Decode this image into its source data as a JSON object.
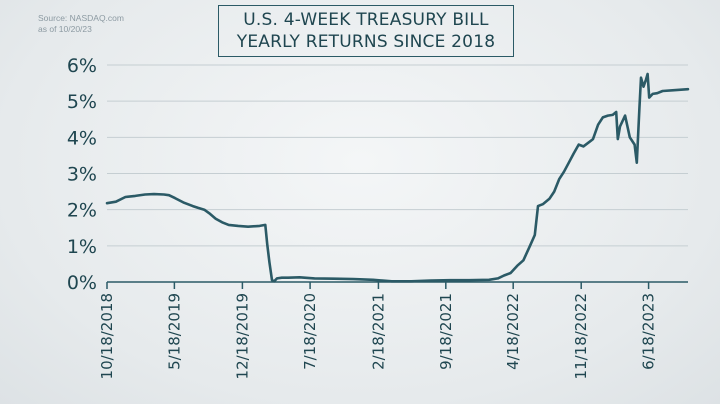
{
  "source": {
    "line1": "Source: NASDAQ.com",
    "line2": "as of 10/20/23"
  },
  "chart_data": {
    "type": "line",
    "title_line1": "U.S. 4-WEEK TREASURY BILL",
    "title_line2": "YEARLY RETURNS SINCE 2018",
    "xlabel": "",
    "ylabel": "",
    "ylim": [
      0,
      6
    ],
    "yticks": [
      "0%",
      "1%",
      "2%",
      "3%",
      "4%",
      "5%",
      "6%"
    ],
    "xlim": [
      "2018-10-18",
      "2023-10-20"
    ],
    "xticks": [
      {
        "date": "2018-10-18",
        "label": "10/18/2018"
      },
      {
        "date": "2019-05-18",
        "label": "5/18/2019"
      },
      {
        "date": "2019-12-18",
        "label": "12/18/2019"
      },
      {
        "date": "2020-07-18",
        "label": "7/18/2020"
      },
      {
        "date": "2021-02-18",
        "label": "2/18/2021"
      },
      {
        "date": "2021-09-18",
        "label": "9/18/2021"
      },
      {
        "date": "2022-04-18",
        "label": "4/18/2022"
      },
      {
        "date": "2022-11-18",
        "label": "11/18/2022"
      },
      {
        "date": "2023-06-18",
        "label": "6/18/2023"
      }
    ],
    "grid": "horizontal",
    "line_color": "#2b5a66",
    "series": [
      {
        "points": [
          [
            "2018-10-18",
            2.18
          ],
          [
            "2018-11-15",
            2.22
          ],
          [
            "2018-12-15",
            2.35
          ],
          [
            "2019-01-15",
            2.38
          ],
          [
            "2019-02-15",
            2.42
          ],
          [
            "2019-03-15",
            2.43
          ],
          [
            "2019-04-15",
            2.42
          ],
          [
            "2019-05-01",
            2.4
          ],
          [
            "2019-05-20",
            2.32
          ],
          [
            "2019-06-15",
            2.2
          ],
          [
            "2019-07-15",
            2.1
          ],
          [
            "2019-08-01",
            2.05
          ],
          [
            "2019-08-20",
            2.0
          ],
          [
            "2019-09-05",
            1.9
          ],
          [
            "2019-09-25",
            1.75
          ],
          [
            "2019-10-15",
            1.65
          ],
          [
            "2019-11-05",
            1.58
          ],
          [
            "2019-12-05",
            1.55
          ],
          [
            "2020-01-05",
            1.53
          ],
          [
            "2020-02-10",
            1.55
          ],
          [
            "2020-02-28",
            1.58
          ],
          [
            "2020-03-05",
            1.05
          ],
          [
            "2020-03-12",
            0.55
          ],
          [
            "2020-03-20",
            0.05
          ],
          [
            "2020-03-27",
            0.02
          ],
          [
            "2020-04-05",
            0.1
          ],
          [
            "2020-04-20",
            0.12
          ],
          [
            "2020-05-10",
            0.12
          ],
          [
            "2020-06-15",
            0.13
          ],
          [
            "2020-08-01",
            0.1
          ],
          [
            "2020-10-01",
            0.09
          ],
          [
            "2020-12-01",
            0.08
          ],
          [
            "2021-02-01",
            0.06
          ],
          [
            "2021-04-01",
            0.02
          ],
          [
            "2021-06-01",
            0.02
          ],
          [
            "2021-08-01",
            0.04
          ],
          [
            "2021-10-01",
            0.05
          ],
          [
            "2021-12-01",
            0.05
          ],
          [
            "2022-02-01",
            0.06
          ],
          [
            "2022-03-01",
            0.1
          ],
          [
            "2022-03-20",
            0.18
          ],
          [
            "2022-04-10",
            0.25
          ],
          [
            "2022-05-01",
            0.45
          ],
          [
            "2022-05-20",
            0.6
          ],
          [
            "2022-06-10",
            1.0
          ],
          [
            "2022-06-25",
            1.3
          ],
          [
            "2022-07-05",
            2.1
          ],
          [
            "2022-07-20",
            2.15
          ],
          [
            "2022-08-10",
            2.3
          ],
          [
            "2022-08-25",
            2.5
          ],
          [
            "2022-09-10",
            2.85
          ],
          [
            "2022-09-25",
            3.05
          ],
          [
            "2022-10-10",
            3.3
          ],
          [
            "2022-10-25",
            3.55
          ],
          [
            "2022-11-10",
            3.8
          ],
          [
            "2022-11-25",
            3.75
          ],
          [
            "2022-12-10",
            3.85
          ],
          [
            "2022-12-25",
            3.95
          ],
          [
            "2023-01-10",
            4.35
          ],
          [
            "2023-01-25",
            4.55
          ],
          [
            "2023-02-10",
            4.6
          ],
          [
            "2023-02-25",
            4.62
          ],
          [
            "2023-03-08",
            4.7
          ],
          [
            "2023-03-13",
            3.95
          ],
          [
            "2023-03-20",
            4.3
          ],
          [
            "2023-04-05",
            4.6
          ],
          [
            "2023-04-20",
            4.0
          ],
          [
            "2023-05-05",
            3.8
          ],
          [
            "2023-05-12",
            3.3
          ],
          [
            "2023-05-20",
            4.8
          ],
          [
            "2023-05-25",
            5.65
          ],
          [
            "2023-06-02",
            5.4
          ],
          [
            "2023-06-10",
            5.6
          ],
          [
            "2023-06-15",
            5.75
          ],
          [
            "2023-06-20",
            5.1
          ],
          [
            "2023-07-01",
            5.2
          ],
          [
            "2023-07-15",
            5.22
          ],
          [
            "2023-08-01",
            5.28
          ],
          [
            "2023-09-01",
            5.3
          ],
          [
            "2023-10-20",
            5.33
          ]
        ]
      }
    ]
  }
}
